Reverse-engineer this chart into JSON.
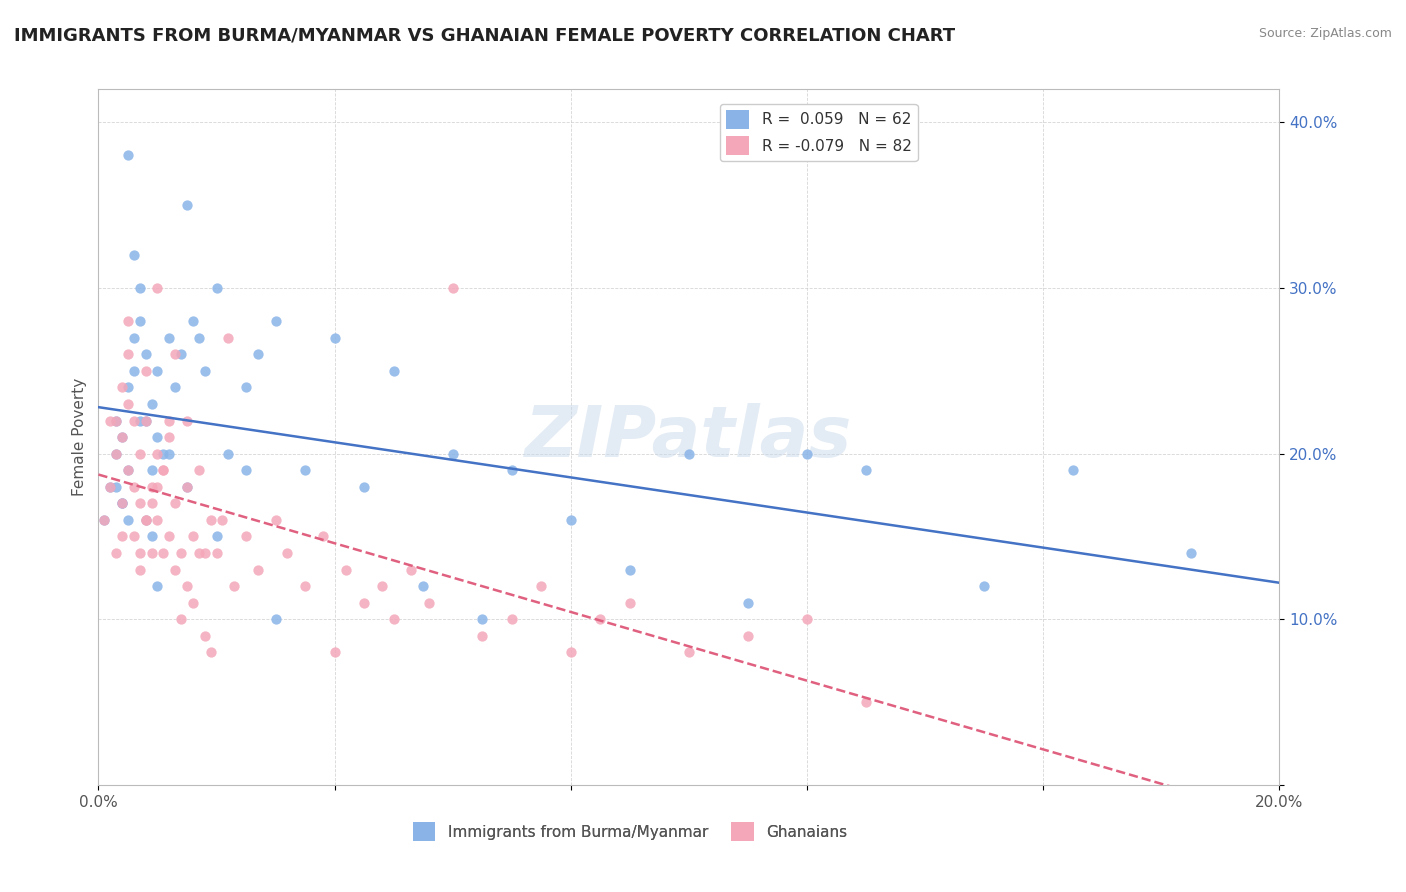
{
  "title": "IMMIGRANTS FROM BURMA/MYANMAR VS GHANAIAN FEMALE POVERTY CORRELATION CHART",
  "source": "Source: ZipAtlas.com",
  "ylabel": "Female Poverty",
  "xlim": [
    0.0,
    0.2
  ],
  "ylim": [
    0.0,
    0.42
  ],
  "yticks": [
    0.0,
    0.1,
    0.2,
    0.3,
    0.4
  ],
  "ytick_labels": [
    "",
    "10.0%",
    "20.0%",
    "30.0%",
    "40.0%"
  ],
  "xticks": [
    0.0,
    0.04,
    0.08,
    0.12,
    0.16,
    0.2
  ],
  "xtick_labels": [
    "0.0%",
    "",
    "",
    "",
    "",
    "20.0%"
  ],
  "color_blue": "#8ab4e8",
  "color_pink": "#f4a7b9",
  "trend_blue": "#4472c4",
  "trend_pink": "#e06080",
  "legend_title_blue": "R =  0.059   N = 62",
  "legend_title_pink": "R = -0.079   N = 82",
  "watermark": "ZIPatlas",
  "legend_label_blue": "Immigrants from Burma/Myanmar",
  "legend_label_pink": "Ghanaians",
  "blue_scatter_x": [
    0.001,
    0.002,
    0.003,
    0.003,
    0.004,
    0.004,
    0.005,
    0.005,
    0.005,
    0.006,
    0.006,
    0.007,
    0.007,
    0.008,
    0.008,
    0.009,
    0.009,
    0.01,
    0.01,
    0.011,
    0.012,
    0.013,
    0.014,
    0.015,
    0.016,
    0.017,
    0.018,
    0.02,
    0.022,
    0.025,
    0.027,
    0.03,
    0.035,
    0.04,
    0.045,
    0.05,
    0.055,
    0.06,
    0.065,
    0.07,
    0.08,
    0.09,
    0.1,
    0.11,
    0.12,
    0.13,
    0.15,
    0.165,
    0.185,
    0.003,
    0.004,
    0.005,
    0.006,
    0.007,
    0.008,
    0.009,
    0.01,
    0.012,
    0.015,
    0.02,
    0.025,
    0.03
  ],
  "blue_scatter_y": [
    0.16,
    0.18,
    0.2,
    0.22,
    0.17,
    0.21,
    0.19,
    0.16,
    0.24,
    0.27,
    0.25,
    0.28,
    0.3,
    0.22,
    0.26,
    0.19,
    0.23,
    0.21,
    0.25,
    0.2,
    0.27,
    0.24,
    0.26,
    0.35,
    0.28,
    0.27,
    0.25,
    0.3,
    0.2,
    0.19,
    0.26,
    0.28,
    0.19,
    0.27,
    0.18,
    0.25,
    0.12,
    0.2,
    0.1,
    0.19,
    0.16,
    0.13,
    0.2,
    0.11,
    0.2,
    0.19,
    0.12,
    0.19,
    0.14,
    0.18,
    0.17,
    0.38,
    0.32,
    0.22,
    0.16,
    0.15,
    0.12,
    0.2,
    0.18,
    0.15,
    0.24,
    0.1
  ],
  "pink_scatter_x": [
    0.001,
    0.002,
    0.002,
    0.003,
    0.003,
    0.004,
    0.004,
    0.004,
    0.005,
    0.005,
    0.005,
    0.006,
    0.006,
    0.007,
    0.007,
    0.007,
    0.008,
    0.008,
    0.008,
    0.009,
    0.009,
    0.01,
    0.01,
    0.01,
    0.011,
    0.011,
    0.012,
    0.012,
    0.013,
    0.013,
    0.014,
    0.015,
    0.015,
    0.016,
    0.017,
    0.018,
    0.019,
    0.02,
    0.021,
    0.022,
    0.023,
    0.025,
    0.027,
    0.03,
    0.032,
    0.035,
    0.038,
    0.04,
    0.042,
    0.045,
    0.048,
    0.05,
    0.053,
    0.056,
    0.06,
    0.065,
    0.07,
    0.075,
    0.08,
    0.085,
    0.09,
    0.1,
    0.11,
    0.12,
    0.13,
    0.003,
    0.004,
    0.005,
    0.006,
    0.007,
    0.008,
    0.009,
    0.01,
    0.011,
    0.012,
    0.013,
    0.014,
    0.015,
    0.016,
    0.017,
    0.018,
    0.019
  ],
  "pink_scatter_y": [
    0.16,
    0.18,
    0.22,
    0.14,
    0.2,
    0.17,
    0.21,
    0.15,
    0.19,
    0.23,
    0.26,
    0.18,
    0.22,
    0.14,
    0.17,
    0.2,
    0.16,
    0.22,
    0.25,
    0.14,
    0.18,
    0.2,
    0.16,
    0.3,
    0.14,
    0.19,
    0.15,
    0.22,
    0.17,
    0.26,
    0.14,
    0.18,
    0.22,
    0.15,
    0.19,
    0.14,
    0.16,
    0.14,
    0.16,
    0.27,
    0.12,
    0.15,
    0.13,
    0.16,
    0.14,
    0.12,
    0.15,
    0.08,
    0.13,
    0.11,
    0.12,
    0.1,
    0.13,
    0.11,
    0.3,
    0.09,
    0.1,
    0.12,
    0.08,
    0.1,
    0.11,
    0.08,
    0.09,
    0.1,
    0.05,
    0.22,
    0.24,
    0.28,
    0.15,
    0.13,
    0.16,
    0.17,
    0.18,
    0.19,
    0.21,
    0.13,
    0.1,
    0.12,
    0.11,
    0.14,
    0.09,
    0.08
  ]
}
